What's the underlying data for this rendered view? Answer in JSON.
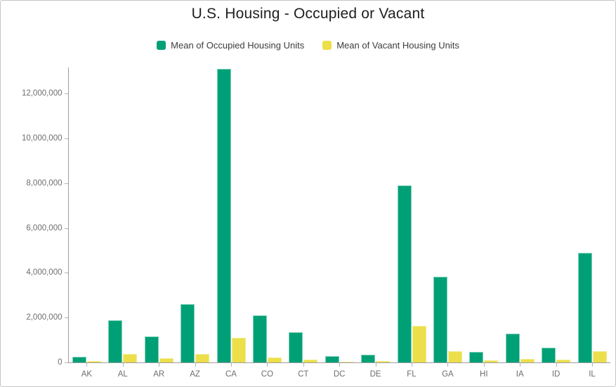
{
  "header": {
    "title": "U.S. Housing - Occupied or Vacant"
  },
  "legend": {
    "items": [
      {
        "label": "Mean of Occupied Housing Units",
        "color": "#00a077"
      },
      {
        "label": "Mean of Vacant Housing Units",
        "color": "#ecdf4a"
      }
    ]
  },
  "chart_data": {
    "type": "bar",
    "title": "U.S. Housing - Occupied or Vacant",
    "categories": [
      "AK",
      "AL",
      "AR",
      "AZ",
      "CA",
      "CO",
      "CT",
      "DC",
      "DE",
      "FL",
      "GA",
      "HI",
      "IA",
      "ID",
      "IL"
    ],
    "series": [
      {
        "name": "Mean of Occupied Housing Units",
        "color": "#00a077",
        "values": [
          250000,
          1880000,
          1150000,
          2610000,
          13100000,
          2090000,
          1360000,
          280000,
          360000,
          7910000,
          3810000,
          470000,
          1280000,
          650000,
          4890000
        ]
      },
      {
        "name": "Mean of Vacant Housing Units",
        "color": "#ecdf4a",
        "values": [
          60000,
          385000,
          180000,
          390000,
          1100000,
          210000,
          135000,
          30000,
          70000,
          1620000,
          490000,
          85000,
          155000,
          115000,
          490000
        ]
      }
    ],
    "xlabel": "",
    "ylabel": "",
    "ylim": [
      0,
      13200000
    ],
    "yticks": [
      0,
      2000000,
      4000000,
      6000000,
      8000000,
      10000000,
      12000000
    ],
    "grid": false,
    "legend_position": "top",
    "colors": {
      "axis_line": "#9e9e9e",
      "tick_mark": "#b2b2b2",
      "tick_label": "#6e6e6e",
      "title_text": "#1e1e1e",
      "legend_text": "#3c3c3c"
    }
  }
}
